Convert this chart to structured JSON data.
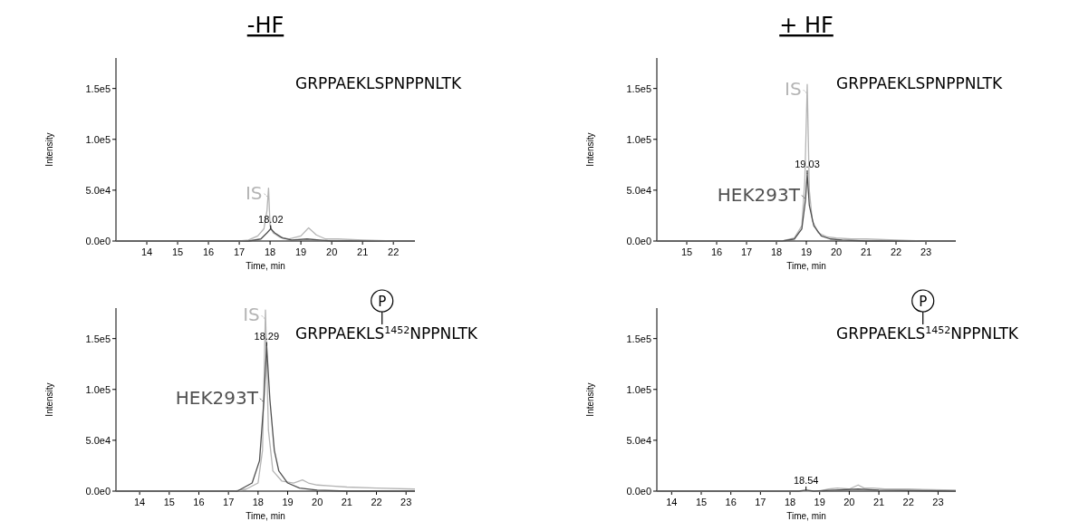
{
  "chart_data": [
    {
      "type": "line",
      "title": "-HF",
      "xlabel": "Time, min",
      "ylabel": "Intensity",
      "xlim": [
        13,
        22.7
      ],
      "xticks": [
        14,
        15,
        16,
        17,
        18,
        19,
        20,
        21,
        22
      ],
      "ylim": [
        0,
        180000
      ],
      "yticks": [
        {
          "value": 0,
          "label": "0.0e0"
        },
        {
          "value": 50000,
          "label": "5.0e4"
        },
        {
          "value": 100000,
          "label": "1.0e5"
        },
        {
          "value": 150000,
          "label": "1.5e5"
        }
      ],
      "annotations": [
        "GRPPAEKLSPNPPNLTK",
        {
          "text": "18.02",
          "x": 18.02,
          "y": 12000
        }
      ],
      "series": [
        {
          "name": "IS",
          "color": "#b4b4b4",
          "x": [
            13,
            17,
            17.3,
            17.6,
            17.8,
            17.9,
            17.95,
            18.0,
            18.1,
            18.3,
            18.6,
            19.0,
            19.25,
            19.5,
            19.8,
            20.2,
            21,
            22,
            22.7
          ],
          "values": [
            0,
            0,
            1000,
            5000,
            12000,
            30000,
            52000,
            15000,
            8000,
            4000,
            2000,
            5000,
            13000,
            6000,
            2000,
            2000,
            1000,
            0,
            0
          ]
        },
        {
          "color": "#505050",
          "x": [
            13,
            17.3,
            17.7,
            17.9,
            18.02,
            18.15,
            18.4,
            18.7,
            19.2,
            19.6,
            20,
            21,
            22.7
          ],
          "values": [
            0,
            0,
            2000,
            8000,
            12000,
            8000,
            3000,
            1000,
            2000,
            1000,
            0,
            0,
            0
          ]
        }
      ]
    },
    {
      "type": "line",
      "legend": "top left",
      "title": "+ HF",
      "xlabel": "Time, min",
      "ylabel": "Intensity",
      "xlim": [
        14,
        24
      ],
      "xticks": [
        15,
        16,
        17,
        18,
        19,
        20,
        21,
        22,
        23
      ],
      "ylim": [
        0,
        180000
      ],
      "yticks": [
        {
          "value": 0,
          "label": "0.0e0"
        },
        {
          "value": 50000,
          "label": "5.0e4"
        },
        {
          "value": 100000,
          "label": "1.0e5"
        },
        {
          "value": 150000,
          "label": "1.5e5"
        }
      ],
      "annotations": [
        "GRPPAEKLSPNPPNLTK",
        {
          "text": "19.03",
          "x": 19.03,
          "y": 66000
        }
      ],
      "series": [
        {
          "name": "IS",
          "color": "#b4b4b4",
          "x": [
            14,
            18.2,
            18.6,
            18.85,
            18.95,
            19.03,
            19.1,
            19.2,
            19.4,
            19.7,
            20,
            20.5,
            21,
            22,
            23,
            24
          ],
          "values": [
            0,
            0,
            3000,
            15000,
            60000,
            154000,
            50000,
            20000,
            8000,
            4000,
            3000,
            2000,
            2000,
            1000,
            0,
            0
          ]
        },
        {
          "name": "HEK293T",
          "color": "#505050",
          "x": [
            14,
            18.2,
            18.6,
            18.85,
            18.97,
            19.03,
            19.1,
            19.25,
            19.5,
            19.8,
            20.2,
            21,
            22,
            24
          ],
          "values": [
            0,
            0,
            2000,
            12000,
            40000,
            66000,
            35000,
            15000,
            5000,
            2000,
            1000,
            0,
            0,
            0
          ]
        }
      ]
    },
    {
      "type": "line",
      "legend": "top left",
      "xlabel": "Time, min",
      "ylabel": "Intensity",
      "xlim": [
        13.2,
        23.3
      ],
      "xticks": [
        14,
        15,
        16,
        17,
        18,
        19,
        20,
        21,
        22,
        23
      ],
      "ylim": [
        0,
        180000
      ],
      "yticks": [
        {
          "value": 0,
          "label": "0.0e0"
        },
        {
          "value": 50000,
          "label": "5.0e4"
        },
        {
          "value": 100000,
          "label": "1.0e5"
        },
        {
          "value": 150000,
          "label": "1.5e5"
        }
      ],
      "annotations": [
        "GRPPAEKLS$^{1452}$NPPNLTK",
        "P",
        {
          "text": "18.29",
          "x": 18.29,
          "y": 143000
        }
      ],
      "series": [
        {
          "name": "IS",
          "color": "#b4b4b4",
          "x": [
            13.2,
            17.2,
            17.6,
            18.0,
            18.15,
            18.25,
            18.35,
            18.5,
            18.8,
            19.2,
            19.5,
            19.7,
            20,
            20.5,
            21,
            22,
            23.3
          ],
          "values": [
            0,
            0,
            2000,
            8000,
            40000,
            178000,
            60000,
            20000,
            10000,
            8000,
            11000,
            8000,
            6000,
            5000,
            4000,
            3000,
            2000
          ]
        },
        {
          "name": "HEK293T",
          "color": "#505050",
          "x": [
            13.2,
            17.3,
            17.8,
            18.05,
            18.2,
            18.29,
            18.4,
            18.55,
            18.7,
            19,
            19.4,
            20,
            21,
            23.3
          ],
          "values": [
            0,
            0,
            8000,
            30000,
            90000,
            143000,
            90000,
            40000,
            20000,
            8000,
            3000,
            1000,
            0,
            0
          ]
        }
      ]
    },
    {
      "type": "line",
      "xlabel": "Time, min",
      "ylabel": "Intensity",
      "xlim": [
        13.5,
        23.6
      ],
      "xticks": [
        14,
        15,
        16,
        17,
        18,
        19,
        20,
        21,
        22,
        23
      ],
      "ylim": [
        0,
        180000
      ],
      "yticks": [
        {
          "value": 0,
          "label": "0.0e0"
        },
        {
          "value": 50000,
          "label": "5.0e4"
        },
        {
          "value": 100000,
          "label": "1.0e5"
        },
        {
          "value": 150000,
          "label": "1.5e5"
        }
      ],
      "annotations": [
        "GRPPAEKLS$^{1452}$NPPNLTK",
        "P",
        {
          "text": "18.54",
          "x": 18.54,
          "y": 1000
        }
      ],
      "series": [
        {
          "color": "#b4b4b4",
          "x": [
            13.5,
            19,
            19.3,
            19.6,
            20,
            20.3,
            20.5,
            20.8,
            21.2,
            22,
            23.6
          ],
          "values": [
            0,
            0,
            2000,
            3000,
            2000,
            6000,
            3000,
            3000,
            2000,
            2000,
            1000
          ]
        },
        {
          "color": "#505050",
          "x": [
            13.5,
            18.3,
            18.54,
            18.8,
            19.5,
            20.3,
            21,
            23.6
          ],
          "values": [
            0,
            0,
            1000,
            0,
            1000,
            2000,
            1000,
            0
          ]
        }
      ]
    }
  ]
}
